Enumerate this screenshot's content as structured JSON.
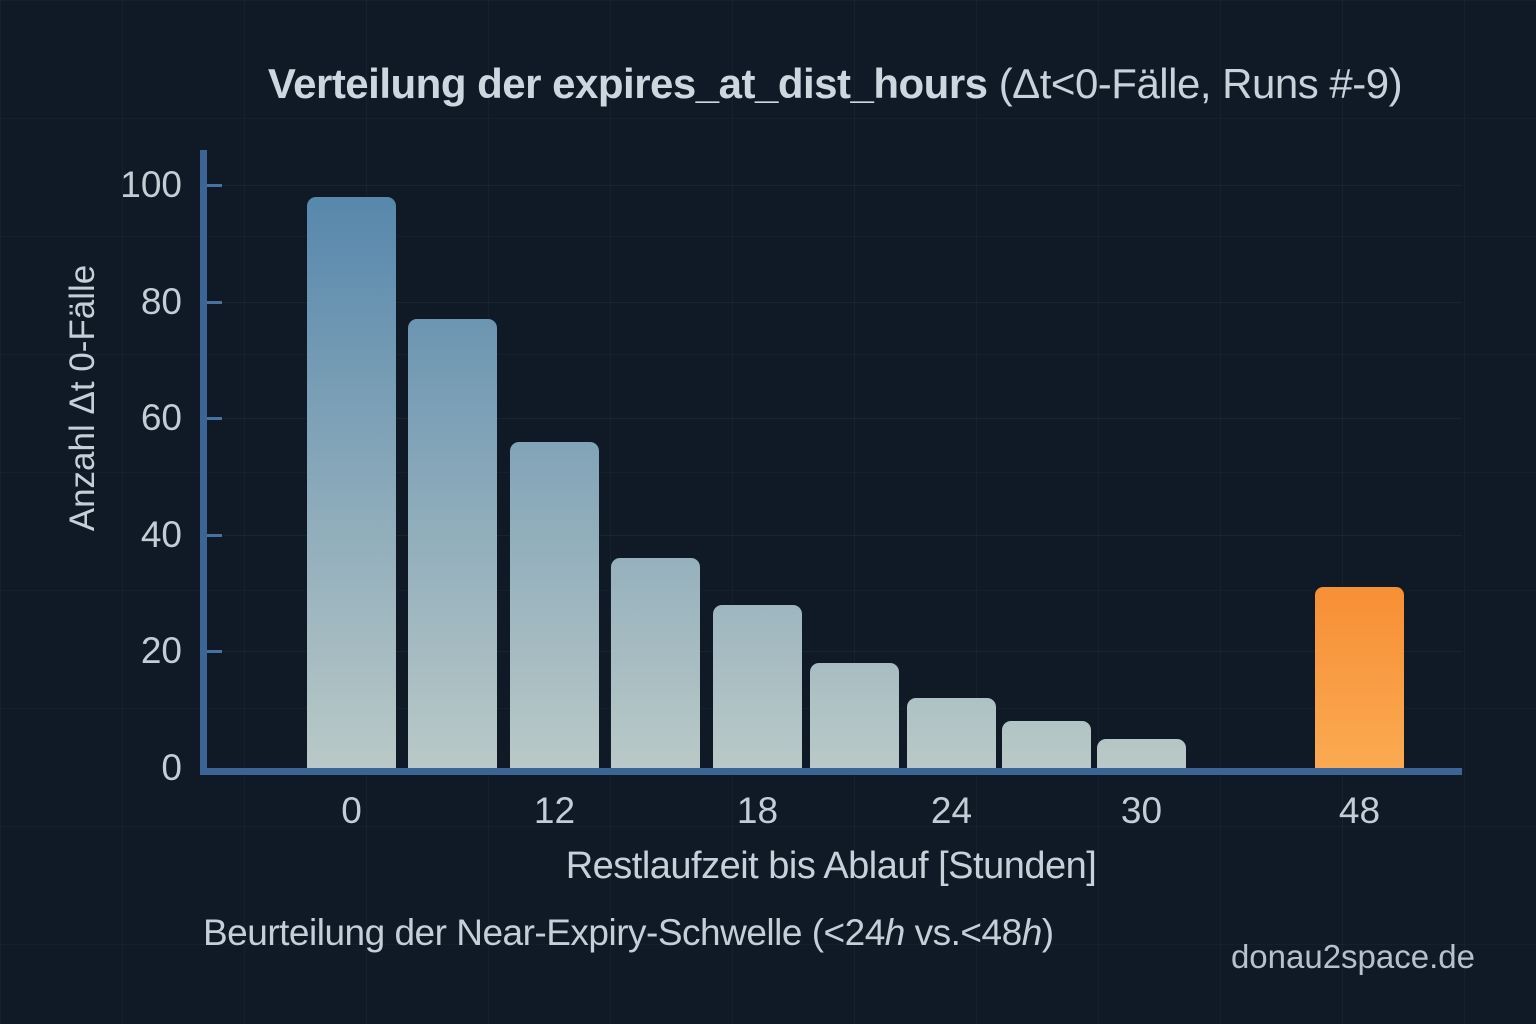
{
  "title": {
    "main": "Verteilung der expires_at_dist_hours",
    "suffix": " (Δt<0-Fälle, Runs #-9)"
  },
  "subtitle": {
    "pre": "Beurteilung der Near-Expiry-Schwelle (<24",
    "h1": "h",
    "mid": " vs.<48",
    "h2": "h",
    "post": ")"
  },
  "watermark": "donau2space.de",
  "chart_data": {
    "type": "bar",
    "title": "Verteilung der expires_at_dist_hours (Δt<0-Fälle, Runs #-9)",
    "xlabel": "Restlaufzeit bis Ablauf [Stunden]",
    "ylabel": "Anzahl Δt 0-Fälle",
    "ylim": [
      0,
      106
    ],
    "yticks": [
      0,
      20,
      40,
      60,
      80,
      100
    ],
    "grid": true,
    "legend_position": "none",
    "bars": [
      {
        "x_label": "0",
        "value": 98,
        "highlight": false
      },
      {
        "x_label": "",
        "value": 77,
        "highlight": false
      },
      {
        "x_label": "12",
        "value": 56,
        "highlight": false
      },
      {
        "x_label": "",
        "value": 36,
        "highlight": false
      },
      {
        "x_label": "18",
        "value": 28,
        "highlight": false
      },
      {
        "x_label": "",
        "value": 18,
        "highlight": false
      },
      {
        "x_label": "24",
        "value": 12,
        "highlight": false
      },
      {
        "x_label": "",
        "value": 8,
        "highlight": false
      },
      {
        "x_label": "30",
        "value": 5,
        "highlight": false
      },
      {
        "x_label": "48",
        "value": 31,
        "highlight": true
      }
    ],
    "colors": {
      "background": "#101a26",
      "axis": "#3c6494",
      "bar_gradient_top": "#4f82aa",
      "bar_gradient_bottom": "#bac9c7",
      "highlight_bar": "#f8993f",
      "text": "#cdd7df"
    }
  }
}
